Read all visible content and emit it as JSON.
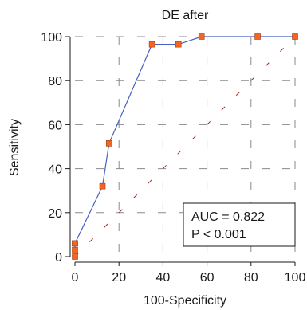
{
  "chart_data": {
    "type": "line",
    "title": "DE after",
    "xlabel": "100-Specificity",
    "ylabel": "Sensitivity",
    "xlim": [
      0,
      100
    ],
    "ylim": [
      0,
      100
    ],
    "x_ticks": [
      0,
      20,
      40,
      60,
      80,
      100
    ],
    "y_ticks": [
      0,
      20,
      40,
      60,
      80,
      100
    ],
    "grid": true,
    "series": [
      {
        "kind": "roc_curve",
        "color": "#4a5fc1",
        "marker_color": "#f26522",
        "x": [
          0,
          0,
          0,
          0,
          12.5,
          15.5,
          35,
          47,
          57.5,
          83,
          100
        ],
        "y": [
          0,
          3,
          6,
          6,
          32,
          51.5,
          96.5,
          96.5,
          100,
          100,
          100
        ]
      },
      {
        "kind": "reference_diagonal",
        "color": "#b22222",
        "x": [
          0,
          100
        ],
        "y": [
          0,
          100
        ]
      }
    ],
    "annotation": {
      "lines": [
        "AUC = 0.822",
        "P < 0.001"
      ],
      "placement": "bottom-right"
    }
  }
}
